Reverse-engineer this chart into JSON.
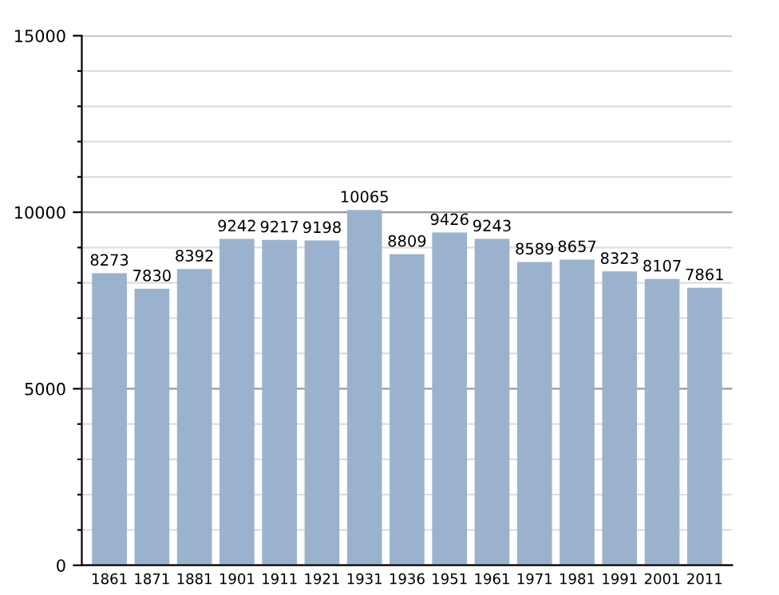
{
  "chart_data": {
    "type": "bar",
    "categories": [
      "1861",
      "1871",
      "1881",
      "1901",
      "1911",
      "1921",
      "1931",
      "1936",
      "1951",
      "1961",
      "1971",
      "1981",
      "1991",
      "2001",
      "2011"
    ],
    "values": [
      8273,
      7830,
      8392,
      9242,
      9217,
      9198,
      10065,
      8809,
      9426,
      9243,
      8589,
      8657,
      8323,
      8107,
      7861
    ],
    "color": "#9bb2cf",
    "ylim": [
      0,
      15000
    ],
    "yticks": [
      0,
      {
        "value": 1000,
        "label": null
      },
      {
        "value": 2000,
        "label": null
      },
      {
        "value": 3000,
        "label": null
      },
      {
        "value": 4000,
        "label": null
      },
      5000,
      {
        "value": 6000,
        "label": null
      },
      {
        "value": 7000,
        "label": null
      },
      {
        "value": 8000,
        "label": null
      },
      {
        "value": 9000,
        "label": null
      },
      10000,
      {
        "value": 11000,
        "label": null
      },
      {
        "value": 12000,
        "label": null
      },
      {
        "value": 13000,
        "label": null
      },
      {
        "value": 14000,
        "label": null
      },
      15000
    ],
    "grid": "y",
    "data_labels": true
  }
}
